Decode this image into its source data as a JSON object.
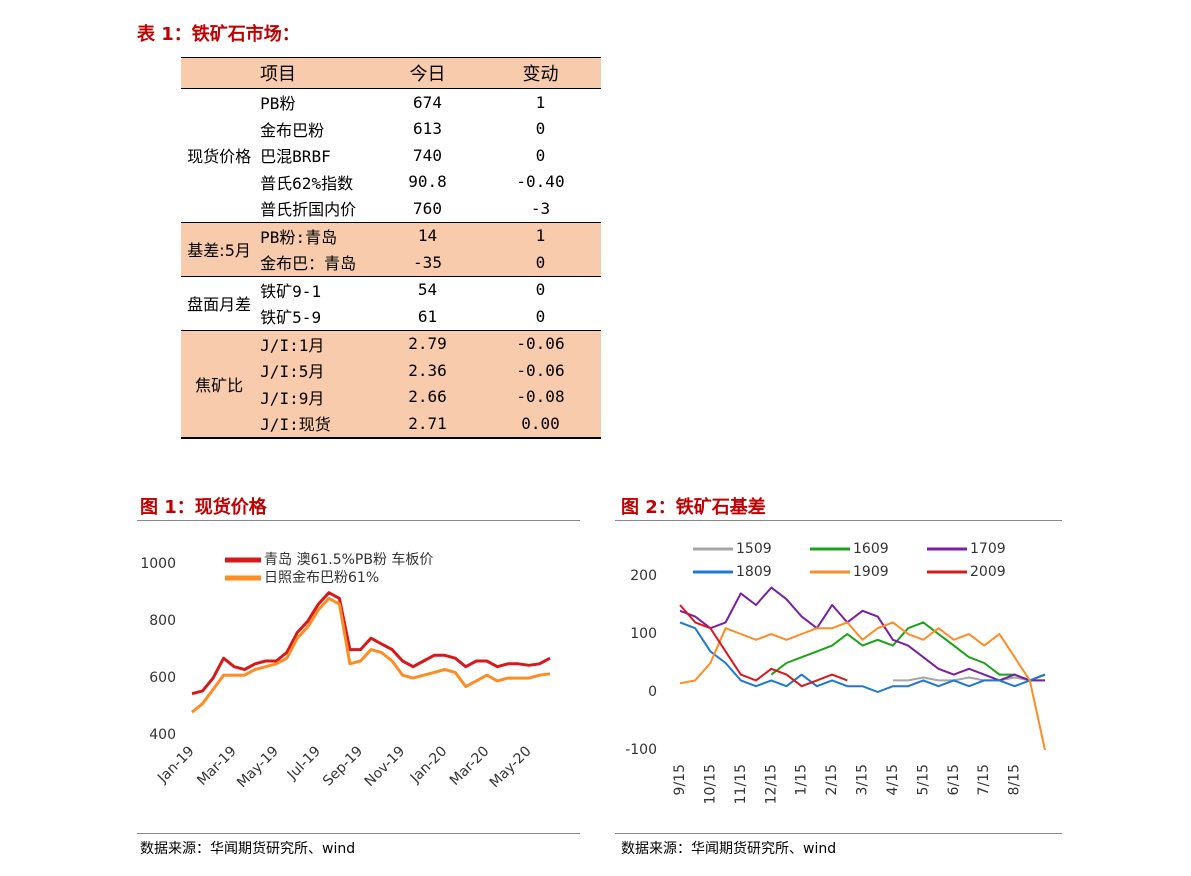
{
  "table_title": "表 1：铁矿石市场：",
  "table": {
    "header": [
      "项目",
      "今日",
      "变动"
    ],
    "groups": [
      {
        "name": "现货价格",
        "rows": [
          [
            "PB粉",
            "674",
            "1"
          ],
          [
            "金布巴粉",
            "613",
            "0"
          ],
          [
            "巴混BRBF",
            "740",
            "0"
          ],
          [
            "普氏62%指数",
            "90.8",
            "-0.40"
          ],
          [
            "普氏折国内价",
            "760",
            "-3"
          ]
        ]
      },
      {
        "name": "基差:5月",
        "rows": [
          [
            "PB粉:青岛",
            "14",
            "1"
          ],
          [
            "金布巴：青岛",
            "-35",
            "0"
          ]
        ]
      },
      {
        "name": "盘面月差",
        "rows": [
          [
            "铁矿9-1",
            "54",
            "0"
          ],
          [
            "铁矿5-9",
            "61",
            "0"
          ]
        ]
      },
      {
        "name": "焦矿比",
        "rows": [
          [
            "J/I:1月",
            "2.79",
            "-0.06"
          ],
          [
            "J/I:5月",
            "2.36",
            "-0.06"
          ],
          [
            "J/I:9月",
            "2.66",
            "-0.08"
          ],
          [
            "J/I:现货",
            "2.71",
            "0.00"
          ]
        ]
      }
    ]
  },
  "chart_data": [
    {
      "type": "line",
      "title": "图 1：现货价格",
      "source": "数据来源：华闻期货研究所、wind",
      "categories": [
        "Jan-19",
        null,
        null,
        null,
        "Mar-19",
        null,
        null,
        null,
        "May-19",
        null,
        null,
        null,
        "Jul-19",
        null,
        null,
        null,
        "Sep-19",
        null,
        null,
        null,
        "Nov-19",
        null,
        null,
        null,
        "Jan-20",
        null,
        null,
        null,
        "Mar-20",
        null,
        null,
        null,
        "May-20",
        null,
        null
      ],
      "series": [
        {
          "name": "青岛 澳61.5%PB粉 车板价",
          "color": "#d7191c",
          "values": [
            545,
            555,
            600,
            670,
            640,
            630,
            650,
            660,
            660,
            690,
            760,
            800,
            860,
            900,
            880,
            700,
            700,
            740,
            720,
            700,
            660,
            640,
            660,
            680,
            680,
            670,
            640,
            660,
            660,
            640,
            650,
            650,
            645,
            650,
            670
          ]
        },
        {
          "name": "日照金布巴粉61%",
          "color": "#fd8d24",
          "values": [
            480,
            510,
            560,
            610,
            610,
            610,
            630,
            640,
            650,
            670,
            740,
            780,
            840,
            880,
            860,
            650,
            660,
            700,
            690,
            660,
            610,
            600,
            610,
            620,
            630,
            620,
            570,
            590,
            610,
            590,
            600,
            600,
            600,
            610,
            615
          ]
        }
      ],
      "ylim": [
        400,
        1050
      ],
      "yticks": [
        400,
        600,
        800,
        1000
      ],
      "grid": false
    },
    {
      "type": "line",
      "title": "图 2：铁矿石基差",
      "source": "数据来源：华闻期货研究所、wind",
      "categories": [
        "9/15",
        null,
        "10/15",
        null,
        "11/15",
        null,
        "12/15",
        null,
        "1/15",
        null,
        "2/15",
        null,
        "3/15",
        null,
        "4/15",
        null,
        "5/15",
        null,
        "6/15",
        null,
        "7/15",
        null,
        "8/15",
        null,
        null
      ],
      "series": [
        {
          "name": "1509",
          "color": "#a6a6a6",
          "values": [
            null,
            null,
            null,
            null,
            null,
            null,
            null,
            null,
            null,
            null,
            null,
            null,
            null,
            null,
            20,
            20,
            25,
            20,
            20,
            25,
            20,
            20,
            25,
            20,
            20
          ]
        },
        {
          "name": "1609",
          "color": "#1aa31a",
          "values": [
            null,
            null,
            null,
            null,
            null,
            null,
            30,
            50,
            60,
            70,
            80,
            100,
            80,
            90,
            80,
            110,
            120,
            100,
            80,
            60,
            50,
            30,
            30,
            20,
            30
          ]
        },
        {
          "name": "1709",
          "color": "#7b1fa2",
          "values": [
            140,
            130,
            110,
            120,
            170,
            150,
            180,
            160,
            130,
            110,
            150,
            120,
            140,
            130,
            90,
            80,
            60,
            40,
            30,
            40,
            30,
            20,
            30,
            20,
            20
          ]
        },
        {
          "name": "1809",
          "color": "#1f78d1",
          "values": [
            120,
            110,
            70,
            50,
            20,
            10,
            20,
            10,
            30,
            10,
            20,
            10,
            10,
            0,
            10,
            10,
            20,
            10,
            20,
            10,
            20,
            20,
            10,
            20,
            30
          ]
        },
        {
          "name": "1909",
          "color": "#fd8d24",
          "values": [
            15,
            20,
            50,
            110,
            100,
            90,
            100,
            90,
            100,
            110,
            110,
            120,
            90,
            110,
            120,
            100,
            90,
            110,
            90,
            100,
            80,
            100,
            60,
            20,
            -100
          ]
        },
        {
          "name": "2009",
          "color": "#d7191c",
          "values": [
            150,
            120,
            110,
            70,
            30,
            20,
            40,
            30,
            10,
            20,
            30,
            20,
            null,
            null,
            null,
            null,
            null,
            null,
            null,
            null,
            null,
            null,
            null,
            null,
            null
          ]
        }
      ],
      "ylim": [
        -100,
        250
      ],
      "yticks": [
        -100,
        0,
        100,
        200
      ],
      "grid": false
    }
  ]
}
